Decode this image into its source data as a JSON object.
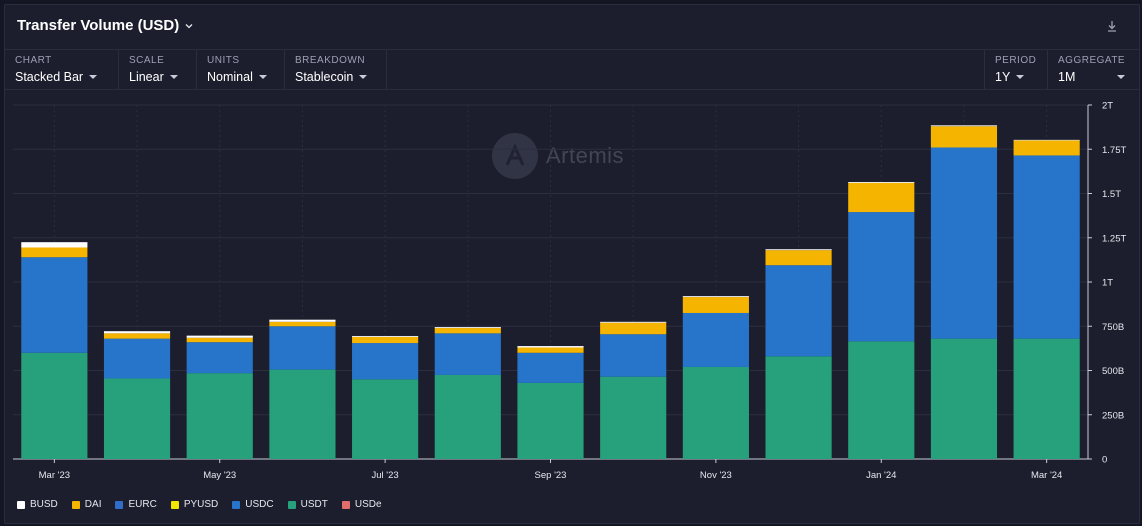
{
  "header": {
    "title": "Transfer Volume (USD)"
  },
  "controls": [
    {
      "label": "CHART",
      "value": "Stacked Bar"
    },
    {
      "label": "SCALE",
      "value": "Linear"
    },
    {
      "label": "UNITS",
      "value": "Nominal"
    },
    {
      "label": "BREAKDOWN",
      "value": "Stablecoin"
    }
  ],
  "controls_right": [
    {
      "label": "PERIOD",
      "value": "1Y"
    },
    {
      "label": "AGGREGATE",
      "value": "1M"
    }
  ],
  "watermark": "Artemis",
  "colors": {
    "BUSD": "#ffffff",
    "DAI": "#f5b400",
    "EURC": "#2f6ec8",
    "PYUSD": "#f2e600",
    "USDC": "#2775ca",
    "USDT": "#26a17b",
    "USDe": "#e06c6c"
  },
  "chart_data": {
    "type": "bar",
    "stacked": true,
    "title": "Transfer Volume (USD)",
    "categories": [
      "Mar '23",
      "Apr '23",
      "May '23",
      "Jun '23",
      "Jul '23",
      "Aug '23",
      "Sep '23",
      "Oct '23",
      "Nov '23",
      "Dec '23",
      "Jan '24",
      "Feb '24",
      "Mar '24"
    ],
    "x_tick_labels": [
      "Mar '23",
      "May '23",
      "Jul '23",
      "Sep '23",
      "Nov '23",
      "Jan '24",
      "Mar '24"
    ],
    "y_tick_labels": [
      "0",
      "250B",
      "500B",
      "750B",
      "1T",
      "1.25T",
      "1.5T",
      "1.75T",
      "2T"
    ],
    "ylim": [
      0,
      2000
    ],
    "y_unit": "B",
    "series": [
      {
        "name": "USDT",
        "values": [
          600,
          455,
          485,
          505,
          450,
          475,
          430,
          465,
          520,
          580,
          665,
          680,
          680
        ]
      },
      {
        "name": "USDC",
        "values": [
          540,
          225,
          175,
          245,
          205,
          235,
          170,
          240,
          305,
          515,
          730,
          1080,
          1035
        ]
      },
      {
        "name": "DAI",
        "values": [
          55,
          30,
          25,
          25,
          35,
          30,
          30,
          65,
          90,
          85,
          165,
          120,
          85
        ]
      },
      {
        "name": "BUSD",
        "values": [
          30,
          12,
          12,
          12,
          5,
          5,
          8,
          5,
          5,
          5,
          5,
          5,
          3
        ]
      }
    ],
    "legend": [
      "BUSD",
      "DAI",
      "EURC",
      "PYUSD",
      "USDC",
      "USDT",
      "USDe"
    ],
    "legend_position": "bottom-left",
    "grid": true
  }
}
